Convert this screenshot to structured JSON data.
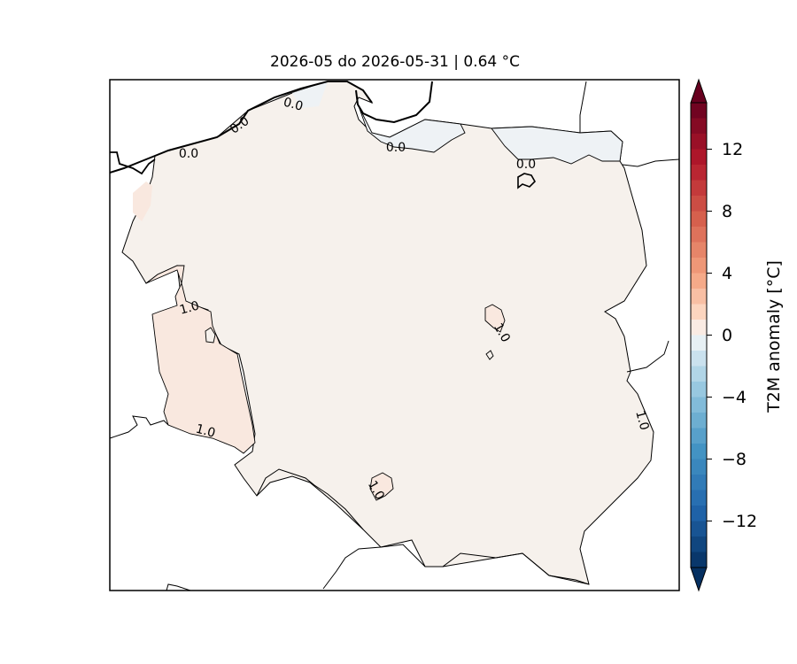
{
  "title": "2026-05 do 2026-05-31 | 0.64 °C",
  "colorbar": {
    "label": "T2M anomaly [°C]",
    "ticks": [
      "12",
      "8",
      "4",
      "0",
      "−4",
      "−8",
      "−12"
    ],
    "tick_values": [
      12,
      8,
      4,
      0,
      -4,
      -8,
      -12
    ],
    "range": [
      -15,
      15
    ],
    "colormap": "RdBu_r",
    "extend": "both"
  },
  "map": {
    "region": "Poland",
    "fill_colors": {
      "near_zero_warm": "#f6f1ec",
      "anomaly_1": "#f9e8df",
      "slightly_cool": "#eef2f5",
      "background": "#ffffff"
    },
    "contour_labels": [
      "0.0",
      "0.0",
      "0.0",
      "0.0",
      "0.0",
      "1.0",
      "1.0",
      "1.0",
      "1.0",
      "1.0"
    ]
  }
}
